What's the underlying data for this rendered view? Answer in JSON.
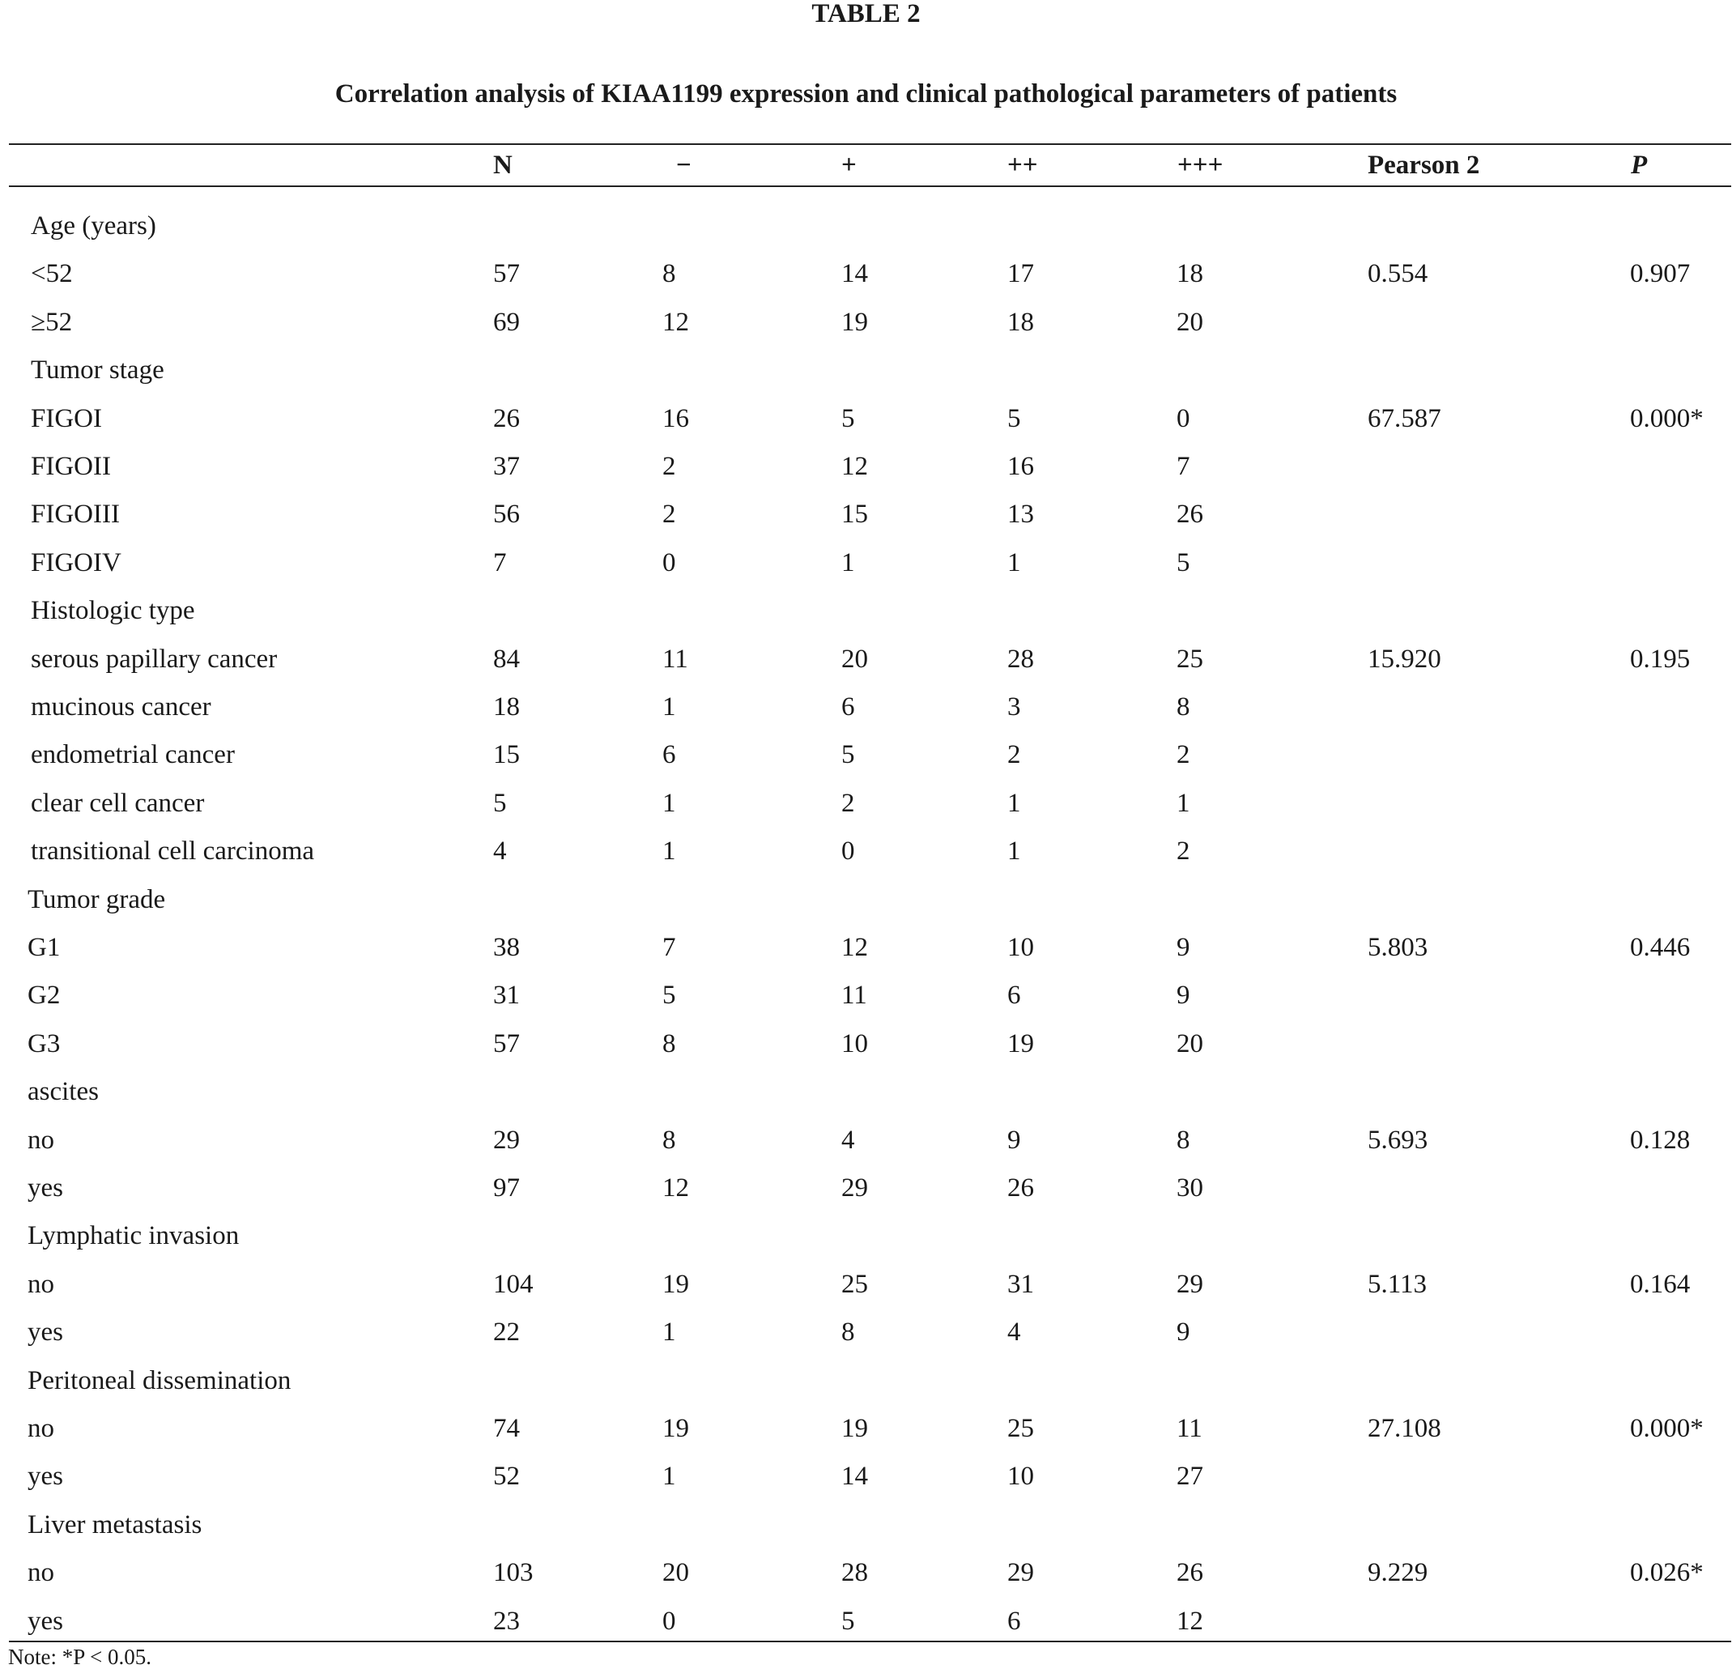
{
  "table_label": "TABLE 2",
  "table_title": "Correlation analysis of KIAA1199 expression and clinical pathological parameters of patients",
  "columns": [
    "",
    "N",
    "−",
    "+",
    "++",
    "+++",
    "Pearson 2",
    "P"
  ],
  "rows": [
    {
      "label": "Age (years)",
      "indent": false,
      "values": [
        "",
        "",
        "",
        "",
        "",
        "",
        ""
      ]
    },
    {
      "label": "<52",
      "indent": false,
      "values": [
        "57",
        "8",
        "14",
        "17",
        "18",
        "0.554",
        "0.907"
      ]
    },
    {
      "label": "≥52",
      "indent": false,
      "values": [
        "69",
        "12",
        "19",
        "18",
        "20",
        "",
        ""
      ]
    },
    {
      "label": "Tumor stage",
      "indent": false,
      "values": [
        "",
        "",
        "",
        "",
        "",
        "",
        ""
      ]
    },
    {
      "label": "FIGOI",
      "indent": false,
      "values": [
        "26",
        "16",
        "5",
        "5",
        "0",
        "67.587",
        "0.000*"
      ]
    },
    {
      "label": "FIGOII",
      "indent": false,
      "values": [
        "37",
        "2",
        "12",
        "16",
        "7",
        "",
        ""
      ]
    },
    {
      "label": "FIGOIII",
      "indent": false,
      "values": [
        "56",
        "2",
        "15",
        "13",
        "26",
        "",
        ""
      ]
    },
    {
      "label": "FIGOIV",
      "indent": false,
      "values": [
        "7",
        "0",
        "1",
        "1",
        "5",
        "",
        ""
      ]
    },
    {
      "label": "Histologic type",
      "indent": false,
      "values": [
        "",
        "",
        "",
        "",
        "",
        "",
        ""
      ]
    },
    {
      "label": "serous papillary cancer",
      "indent": false,
      "values": [
        "84",
        "11",
        "20",
        "28",
        "25",
        "15.920",
        "0.195"
      ]
    },
    {
      "label": "mucinous cancer",
      "indent": false,
      "values": [
        "18",
        "1",
        "6",
        "3",
        "8",
        "",
        ""
      ]
    },
    {
      "label": "endometrial cancer",
      "indent": false,
      "values": [
        "15",
        "6",
        "5",
        "2",
        "2",
        "",
        ""
      ]
    },
    {
      "label": "clear cell cancer",
      "indent": false,
      "values": [
        "5",
        "1",
        "2",
        "1",
        "1",
        "",
        ""
      ]
    },
    {
      "label": "transitional cell carcinoma",
      "indent": false,
      "values": [
        "4",
        "1",
        "0",
        "1",
        "2",
        "",
        ""
      ]
    },
    {
      "label": "Tumor grade",
      "indent": true,
      "values": [
        "",
        "",
        "",
        "",
        "",
        "",
        ""
      ]
    },
    {
      "label": "G1",
      "indent": true,
      "values": [
        "38",
        "7",
        "12",
        "10",
        "9",
        "5.803",
        "0.446"
      ]
    },
    {
      "label": "G2",
      "indent": true,
      "values": [
        "31",
        "5",
        "11",
        "6",
        "9",
        "",
        ""
      ]
    },
    {
      "label": "G3",
      "indent": true,
      "values": [
        "57",
        "8",
        "10",
        "19",
        "20",
        "",
        ""
      ]
    },
    {
      "label": "ascites",
      "indent": true,
      "values": [
        "",
        "",
        "",
        "",
        "",
        "",
        ""
      ]
    },
    {
      "label": "no",
      "indent": true,
      "values": [
        "29",
        "8",
        "4",
        "9",
        "8",
        "5.693",
        "0.128"
      ]
    },
    {
      "label": "yes",
      "indent": true,
      "values": [
        "97",
        "12",
        "29",
        "26",
        "30",
        "",
        ""
      ]
    },
    {
      "label": "Lymphatic invasion",
      "indent": true,
      "values": [
        "",
        "",
        "",
        "",
        "",
        "",
        ""
      ]
    },
    {
      "label": "no",
      "indent": true,
      "values": [
        "104",
        "19",
        "25",
        "31",
        "29",
        "5.113",
        "0.164"
      ]
    },
    {
      "label": "yes",
      "indent": true,
      "values": [
        "22",
        "1",
        "8",
        "4",
        "9",
        "",
        ""
      ]
    },
    {
      "label": "Peritoneal dissemination",
      "indent": true,
      "values": [
        "",
        "",
        "",
        "",
        "",
        "",
        ""
      ]
    },
    {
      "label": "no",
      "indent": true,
      "values": [
        "74",
        "19",
        "19",
        "25",
        "11",
        "27.108",
        "0.000*"
      ]
    },
    {
      "label": "yes",
      "indent": true,
      "values": [
        "52",
        "1",
        "14",
        "10",
        "27",
        "",
        ""
      ]
    },
    {
      "label": "Liver metastasis",
      "indent": true,
      "values": [
        "",
        "",
        "",
        "",
        "",
        "",
        ""
      ]
    },
    {
      "label": "no",
      "indent": true,
      "values": [
        "103",
        "20",
        "28",
        "29",
        "26",
        "9.229",
        "0.026*"
      ]
    },
    {
      "label": "yes",
      "indent": true,
      "values": [
        "23",
        "0",
        "5",
        "6",
        "12",
        "",
        ""
      ]
    }
  ],
  "note": "Note: *P < 0.05."
}
